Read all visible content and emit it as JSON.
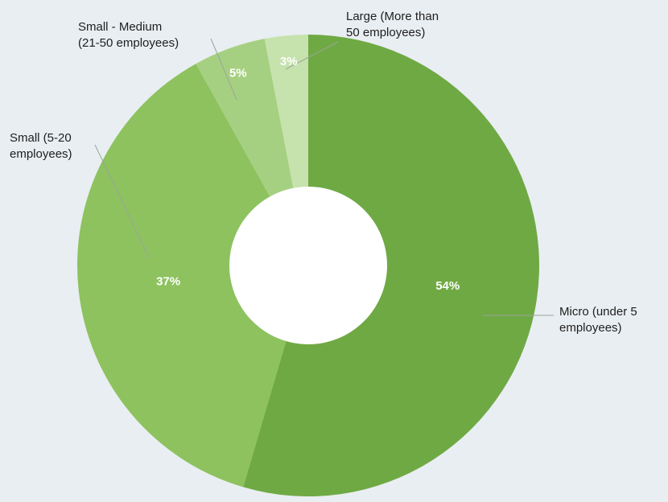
{
  "chart_data": {
    "type": "pie",
    "style": "donut",
    "slices": [
      {
        "category_lines": [
          "Micro (under 5",
          "employees)"
        ],
        "value": 54,
        "label": "54%",
        "color": "#6fa944"
      },
      {
        "category_lines": [
          "Small (5-20",
          "employees)"
        ],
        "value": 37,
        "label": "37%",
        "color": "#8dc25f"
      },
      {
        "category_lines": [
          "Small - Medium",
          "(21-50 employees)"
        ],
        "value": 5,
        "label": "5%",
        "color": "#a6d081"
      },
      {
        "category_lines": [
          "Large (More than",
          "50 employees)"
        ],
        "value": 3,
        "label": "3%",
        "color": "#c6e2ad"
      }
    ],
    "legend": "none",
    "background": "#e9eef2"
  }
}
